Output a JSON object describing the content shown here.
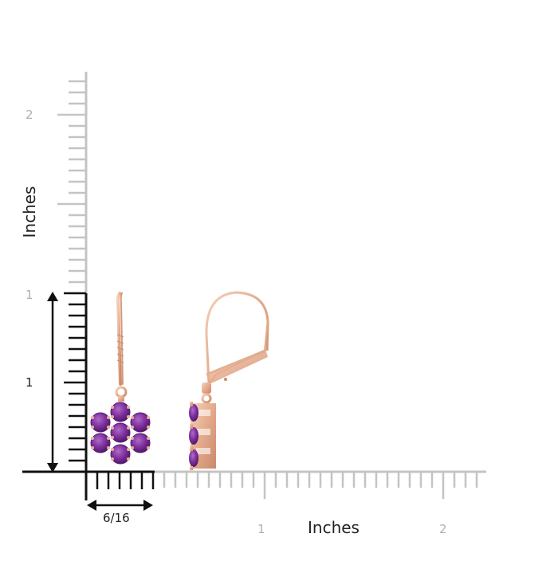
{
  "ruler": {
    "vertical_title": "Inches",
    "horizontal_title": "Inches",
    "vertical_tick_labels": [
      "2",
      "1",
      "1"
    ],
    "horizontal_tick_labels": [
      "1",
      "2"
    ],
    "width_measure_label": "6/16"
  },
  "colors": {
    "ruler_grey": "#c4c4c4",
    "ruler_black": "#111111",
    "metal_rose_gold": "#e8b497",
    "gem_amethyst": "#7a2e9a"
  }
}
